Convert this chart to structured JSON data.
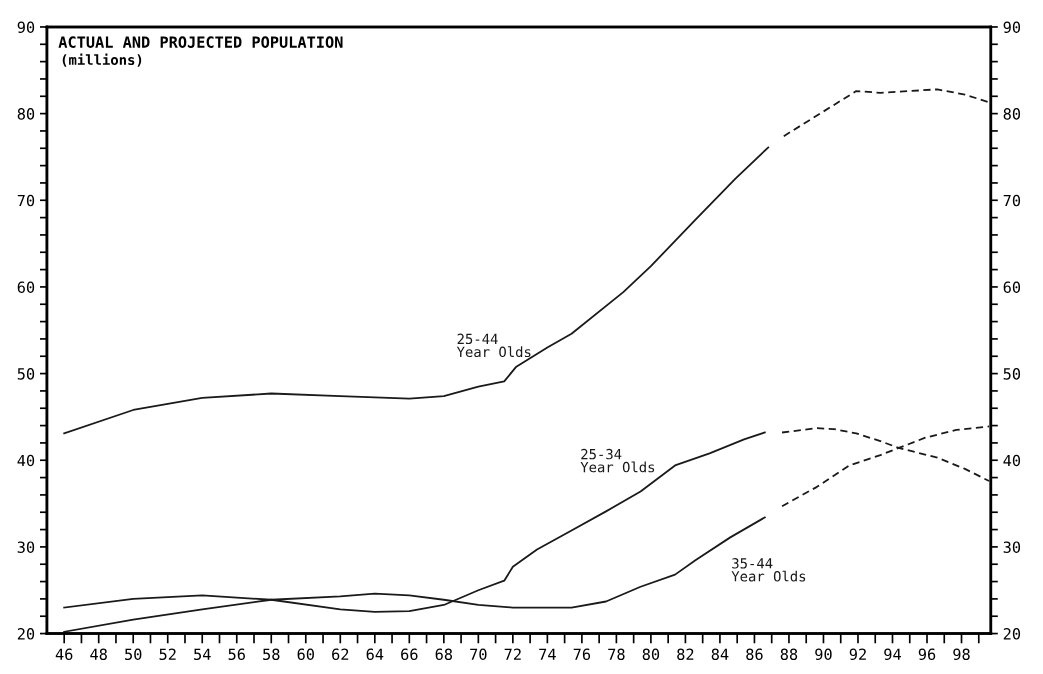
{
  "chart_data": {
    "type": "line",
    "title": "ACTUAL AND PROJECTED POPULATION",
    "subtitle": "(millions)",
    "series": [
      {
        "name": "25-44\nYear Olds",
        "color": "#1a1a1a",
        "line_style": "solid",
        "x": [
          1946,
          1950,
          1954,
          1958,
          1962,
          1966,
          1968,
          1970,
          1971.5,
          1972.2,
          1974,
          1975.4,
          1978.4,
          1980,
          1982.6,
          1984.9,
          1986.8
        ],
        "values": [
          43.1,
          45.8,
          47.2,
          47.7,
          47.4,
          47.1,
          47.4,
          48.5,
          49.1,
          50.8,
          53.0,
          54.6,
          59.4,
          62.4,
          67.8,
          72.5,
          76.1
        ]
      },
      {
        "color": "#1a1a1a",
        "line_style": "dashed",
        "x": [
          1987.7,
          1991.9,
          1993.3,
          1996.6,
          1998.2,
          1999.6
        ],
        "values": [
          77.4,
          82.6,
          82.4,
          82.8,
          82.2,
          81.3
        ]
      },
      {
        "name": "25-34\nYear Olds",
        "color": "#1a1a1a",
        "line_style": "solid",
        "x": [
          1946,
          1950,
          1954,
          1958,
          1962,
          1964,
          1966,
          1968,
          1970,
          1971.5,
          1972.0,
          1973.4,
          1975.4,
          1977.4,
          1979.4,
          1981.4,
          1983.4,
          1985.4,
          1986.6
        ],
        "values": [
          23.0,
          24.0,
          24.4,
          23.9,
          22.8,
          22.5,
          22.6,
          23.3,
          25.0,
          26.1,
          27.7,
          29.7,
          31.9,
          34.1,
          36.4,
          39.4,
          40.8,
          42.4,
          43.2
        ]
      },
      {
        "color": "#1a1a1a",
        "line_style": "dashed",
        "x": [
          1987.6,
          1989.6,
          1990.6,
          1991.9,
          1993.3,
          1994.4,
          1996.6,
          1998.2,
          1999.6
        ],
        "values": [
          43.2,
          43.7,
          43.6,
          43.1,
          42.2,
          41.4,
          40.3,
          39.0,
          37.6
        ]
      },
      {
        "name": "35-44\nYear Olds",
        "color": "#1a1a1a",
        "line_style": "solid",
        "x": [
          1946,
          1950,
          1954,
          1958,
          1962,
          1964,
          1966,
          1968,
          1970,
          1972,
          1973.4,
          1975.4,
          1977.4,
          1979.4,
          1981.4,
          1982.6,
          1984.6,
          1986.6
        ],
        "values": [
          20.2,
          21.6,
          22.8,
          23.9,
          24.3,
          24.6,
          24.4,
          23.9,
          23.3,
          23.0,
          23.0,
          23.0,
          23.7,
          25.4,
          26.8,
          28.5,
          31.1,
          33.4
        ]
      },
      {
        "color": "#1a1a1a",
        "line_style": "dashed",
        "x": [
          1987.6,
          1989.6,
          1991.5,
          1993.3,
          1995.9,
          1997.7,
          1999.6
        ],
        "values": [
          34.7,
          36.9,
          39.4,
          40.6,
          42.6,
          43.5,
          43.9
        ]
      }
    ],
    "xlim": [
      1945,
      1999.7
    ],
    "xticks": [
      {
        "value": 1946,
        "label": "46"
      },
      {
        "value": 1947,
        "label": null
      },
      {
        "value": 1948,
        "label": "48"
      },
      {
        "value": 1949,
        "label": null
      },
      {
        "value": 1950,
        "label": "50"
      },
      {
        "value": 1951,
        "label": null
      },
      {
        "value": 1952,
        "label": "52"
      },
      {
        "value": 1953,
        "label": null
      },
      {
        "value": 1954,
        "label": "54"
      },
      {
        "value": 1955,
        "label": null
      },
      {
        "value": 1956,
        "label": "56"
      },
      {
        "value": 1957,
        "label": null
      },
      {
        "value": 1958,
        "label": "58"
      },
      {
        "value": 1959,
        "label": null
      },
      {
        "value": 1960,
        "label": "60"
      },
      {
        "value": 1961,
        "label": null
      },
      {
        "value": 1962,
        "label": "62"
      },
      {
        "value": 1963,
        "label": null
      },
      {
        "value": 1964,
        "label": "64"
      },
      {
        "value": 1965,
        "label": null
      },
      {
        "value": 1966,
        "label": "66"
      },
      {
        "value": 1967,
        "label": null
      },
      {
        "value": 1968,
        "label": "68"
      },
      {
        "value": 1969,
        "label": null
      },
      {
        "value": 1970,
        "label": "70"
      },
      {
        "value": 1971,
        "label": null
      },
      {
        "value": 1972,
        "label": "72"
      },
      {
        "value": 1973,
        "label": null
      },
      {
        "value": 1974,
        "label": "74"
      },
      {
        "value": 1975,
        "label": null
      },
      {
        "value": 1976,
        "label": "76"
      },
      {
        "value": 1977,
        "label": null
      },
      {
        "value": 1978,
        "label": "78"
      },
      {
        "value": 1979,
        "label": null
      },
      {
        "value": 1980,
        "label": "80"
      },
      {
        "value": 1981,
        "label": null
      },
      {
        "value": 1982,
        "label": "82"
      },
      {
        "value": 1983,
        "label": null
      },
      {
        "value": 1984,
        "label": "84"
      },
      {
        "value": 1985,
        "label": null
      },
      {
        "value": 1986,
        "label": "86"
      },
      {
        "value": 1987,
        "label": null
      },
      {
        "value": 1988,
        "label": "88"
      },
      {
        "value": 1989,
        "label": null
      },
      {
        "value": 1990,
        "label": "90"
      },
      {
        "value": 1991,
        "label": null
      },
      {
        "value": 1992,
        "label": "92"
      },
      {
        "value": 1993,
        "label": null
      },
      {
        "value": 1994,
        "label": "94"
      },
      {
        "value": 1995,
        "label": null
      },
      {
        "value": 1996,
        "label": "96"
      },
      {
        "value": 1997,
        "label": null
      },
      {
        "value": 1998,
        "label": "98"
      },
      {
        "value": 1999,
        "label": null
      }
    ],
    "ylim": [
      20,
      90
    ],
    "yticks": [
      20,
      {
        "value": 22,
        "label": null
      },
      {
        "value": 24,
        "label": null
      },
      {
        "value": 26,
        "label": null
      },
      {
        "value": 28,
        "label": null
      },
      30,
      {
        "value": 32,
        "label": null
      },
      {
        "value": 34,
        "label": null
      },
      {
        "value": 36,
        "label": null
      },
      {
        "value": 38,
        "label": null
      },
      40,
      {
        "value": 42,
        "label": null
      },
      {
        "value": 44,
        "label": null
      },
      {
        "value": 46,
        "label": null
      },
      {
        "value": 48,
        "label": null
      },
      50,
      {
        "value": 52,
        "label": null
      },
      {
        "value": 54,
        "label": null
      },
      {
        "value": 56,
        "label": null
      },
      {
        "value": 58,
        "label": null
      },
      60,
      {
        "value": 62,
        "label": null
      },
      {
        "value": 64,
        "label": null
      },
      {
        "value": 66,
        "label": null
      },
      {
        "value": 68,
        "label": null
      },
      70,
      {
        "value": 72,
        "label": null
      },
      {
        "value": 74,
        "label": null
      },
      {
        "value": 76,
        "label": null
      },
      {
        "value": 78,
        "label": null
      },
      80,
      {
        "value": 82,
        "label": null
      },
      {
        "value": 84,
        "label": null
      },
      {
        "value": 86,
        "label": null
      },
      {
        "value": 88,
        "label": null
      },
      90
    ],
    "y2lim": [
      20,
      90
    ],
    "y2ticks": [
      20,
      {
        "value": 22,
        "label": null
      },
      {
        "value": 24,
        "label": null
      },
      {
        "value": 26,
        "label": null
      },
      {
        "value": 28,
        "label": null
      },
      30,
      {
        "value": 32,
        "label": null
      },
      {
        "value": 34,
        "label": null
      },
      {
        "value": 36,
        "label": null
      },
      {
        "value": 38,
        "label": null
      },
      40,
      {
        "value": 42,
        "label": null
      },
      {
        "value": 44,
        "label": null
      },
      {
        "value": 46,
        "label": null
      },
      {
        "value": 48,
        "label": null
      },
      50,
      {
        "value": 52,
        "label": null
      },
      {
        "value": 54,
        "label": null
      },
      {
        "value": 56,
        "label": null
      },
      {
        "value": 58,
        "label": null
      },
      60,
      {
        "value": 62,
        "label": null
      },
      {
        "value": 64,
        "label": null
      },
      {
        "value": 66,
        "label": null
      },
      {
        "value": 68,
        "label": null
      },
      70,
      {
        "value": 72,
        "label": null
      },
      {
        "value": 74,
        "label": null
      },
      {
        "value": 76,
        "label": null
      },
      {
        "value": 78,
        "label": null
      },
      80,
      {
        "value": 82,
        "label": null
      },
      {
        "value": 84,
        "label": null
      },
      {
        "value": 86,
        "label": null
      },
      {
        "value": 88,
        "label": null
      },
      90
    ]
  }
}
